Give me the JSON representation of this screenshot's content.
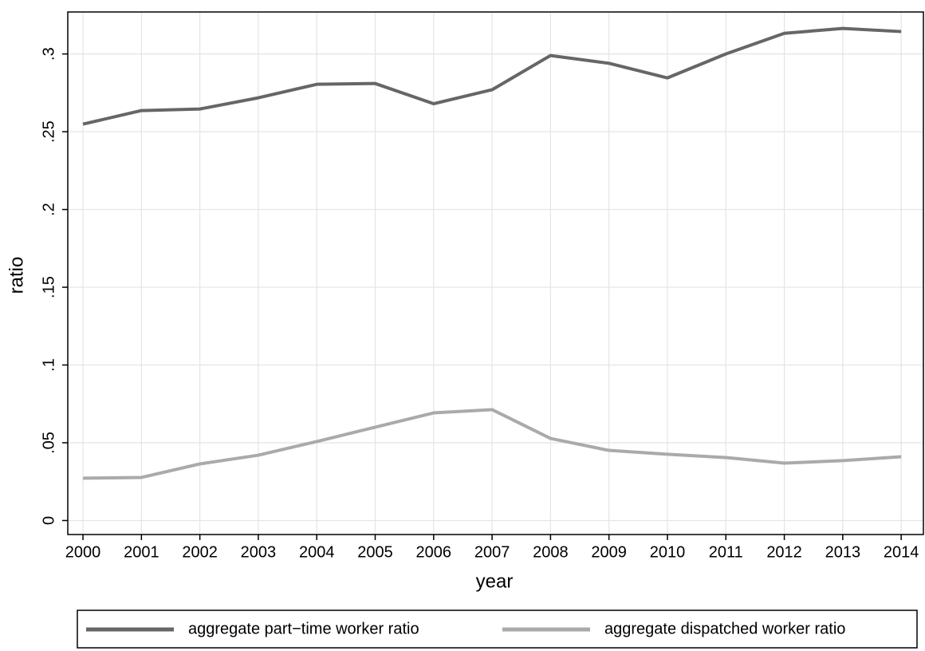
{
  "chart_data": {
    "type": "line",
    "x_label": "year",
    "y_label": "ratio",
    "x": [
      2000,
      2001,
      2002,
      2003,
      2004,
      2005,
      2006,
      2007,
      2008,
      2009,
      2010,
      2011,
      2012,
      2013,
      2014
    ],
    "series": [
      {
        "name": "aggregate part−time worker ratio",
        "color": "#666666",
        "values": [
          0.2549,
          0.2636,
          0.2646,
          0.2718,
          0.2805,
          0.281,
          0.268,
          0.277,
          0.299,
          0.294,
          0.2846,
          0.3,
          0.3133,
          0.3164,
          0.3144
        ]
      },
      {
        "name": "aggregate dispatched worker ratio",
        "color": "#aaaaaa",
        "values": [
          0.0272,
          0.0277,
          0.0364,
          0.042,
          0.0508,
          0.06,
          0.0692,
          0.0713,
          0.0528,
          0.0451,
          0.0426,
          0.0405,
          0.0369,
          0.0385,
          0.041
        ]
      }
    ],
    "xlim": [
      1999.74,
      2014.38
    ],
    "ylim": [
      -0.009,
      0.327
    ],
    "xticks": [
      2000,
      2001,
      2002,
      2003,
      2004,
      2005,
      2006,
      2007,
      2008,
      2009,
      2010,
      2011,
      2012,
      2013,
      2014
    ],
    "yticks": [
      0,
      {
        "value": 0.05,
        "label": ".05"
      },
      {
        "value": 0.1,
        "label": ".1"
      },
      {
        "value": 0.15,
        "label": ".15"
      },
      {
        "value": 0.2,
        "label": ".2"
      },
      {
        "value": 0.25,
        "label": ".25"
      },
      {
        "value": 0.3,
        "label": ".3"
      }
    ],
    "grid": true,
    "legend": "bottom"
  }
}
